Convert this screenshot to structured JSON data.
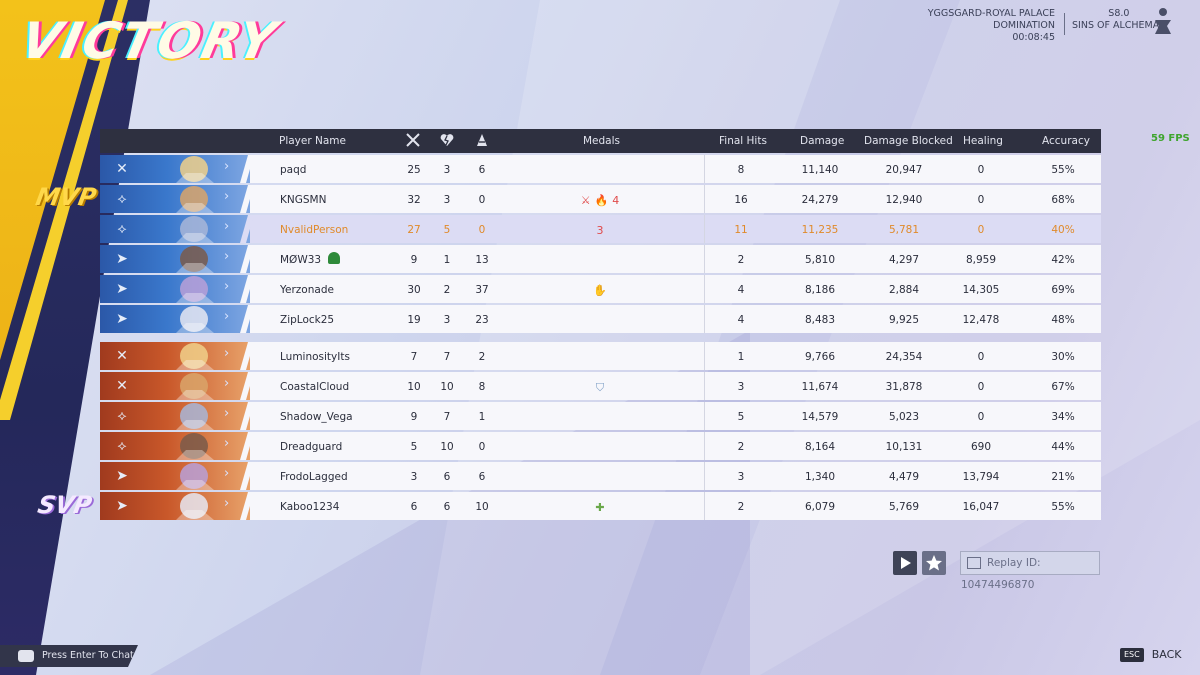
{
  "result_title": "VICTORY",
  "mvp_label": "MVP",
  "svp_label": "SVP",
  "match": {
    "map": "YGGSGARD-ROYAL PALACE",
    "mode": "DOMINATION",
    "duration": "00:08:45"
  },
  "season": {
    "label": "S8.0",
    "name": "SINS OF ALCHEMAX"
  },
  "fps": "59 FPS",
  "columns": {
    "player": "Player Name",
    "medals": "Medals",
    "final_hits": "Final Hits",
    "damage": "Damage",
    "blocked": "Damage Blocked",
    "healing": "Healing",
    "accuracy": "Accuracy"
  },
  "column_icons": {
    "kills": "crossed-swords-icon",
    "deaths": "broken-heart-icon",
    "assists": "assist-icon"
  },
  "colors": {
    "team_blue": "#3a78cc",
    "team_red": "#c9582a",
    "self_highlight": "#e08a2a",
    "header_bg": "#2e3040"
  },
  "team_blue": [
    {
      "role": "vanguard",
      "name": "paqd",
      "k": "25",
      "d": "3",
      "a": "6",
      "medals": [],
      "final_hits": "8",
      "damage": "11,140",
      "blocked": "20,947",
      "healing": "0",
      "accuracy": "55%"
    },
    {
      "role": "duelist",
      "name": "KNGSMN",
      "k": "32",
      "d": "3",
      "a": "0",
      "medals": [
        "⚔",
        "🔥",
        "4"
      ],
      "final_hits": "16",
      "damage": "24,279",
      "blocked": "12,940",
      "healing": "0",
      "accuracy": "68%"
    },
    {
      "role": "duelist",
      "name": "NvalidPerson",
      "k": "27",
      "d": "5",
      "a": "0",
      "medals": [
        "3"
      ],
      "final_hits": "11",
      "damage": "11,235",
      "blocked": "5,781",
      "healing": "0",
      "accuracy": "40%",
      "self": true
    },
    {
      "role": "strategist",
      "name": "MØW33",
      "k": "9",
      "d": "1",
      "a": "13",
      "medals": [],
      "final_hits": "2",
      "damage": "5,810",
      "blocked": "4,297",
      "healing": "8,959",
      "accuracy": "42%"
    },
    {
      "role": "strategist",
      "name": "Yerzonade",
      "k": "30",
      "d": "2",
      "a": "37",
      "medals": [
        "✋"
      ],
      "final_hits": "4",
      "damage": "8,186",
      "blocked": "2,884",
      "healing": "14,305",
      "accuracy": "69%"
    },
    {
      "role": "strategist",
      "name": "ZipLock25",
      "k": "19",
      "d": "3",
      "a": "23",
      "medals": [],
      "final_hits": "4",
      "damage": "8,483",
      "blocked": "9,925",
      "healing": "12,478",
      "accuracy": "48%"
    }
  ],
  "team_red": [
    {
      "role": "vanguard",
      "name": "LuminosityIts",
      "k": "7",
      "d": "7",
      "a": "2",
      "medals": [],
      "final_hits": "1",
      "damage": "9,766",
      "blocked": "24,354",
      "healing": "0",
      "accuracy": "30%"
    },
    {
      "role": "vanguard",
      "name": "CoastalCloud",
      "k": "10",
      "d": "10",
      "a": "8",
      "medals": [
        "⛉"
      ],
      "final_hits": "3",
      "damage": "11,674",
      "blocked": "31,878",
      "healing": "0",
      "accuracy": "67%"
    },
    {
      "role": "duelist",
      "name": "Shadow_Vega",
      "k": "9",
      "d": "7",
      "a": "1",
      "medals": [],
      "final_hits": "5",
      "damage": "14,579",
      "blocked": "5,023",
      "healing": "0",
      "accuracy": "34%"
    },
    {
      "role": "duelist",
      "name": "Dreadguard",
      "k": "5",
      "d": "10",
      "a": "0",
      "medals": [],
      "final_hits": "2",
      "damage": "8,164",
      "blocked": "10,131",
      "healing": "690",
      "accuracy": "44%"
    },
    {
      "role": "strategist",
      "name": "FrodoLagged",
      "k": "3",
      "d": "6",
      "a": "6",
      "medals": [],
      "final_hits": "3",
      "damage": "1,340",
      "blocked": "4,479",
      "healing": "13,794",
      "accuracy": "21%"
    },
    {
      "role": "strategist",
      "name": "Kaboo1234",
      "k": "6",
      "d": "6",
      "a": "10",
      "medals": [
        "✚"
      ],
      "final_hits": "2",
      "damage": "6,079",
      "blocked": "5,769",
      "healing": "16,047",
      "accuracy": "55%"
    }
  ],
  "replay": {
    "label": "Replay ID: 10474496870"
  },
  "chat": {
    "prompt": "Press Enter To Chat"
  },
  "footer": {
    "esc_key": "ESC",
    "back_label": "BACK"
  }
}
